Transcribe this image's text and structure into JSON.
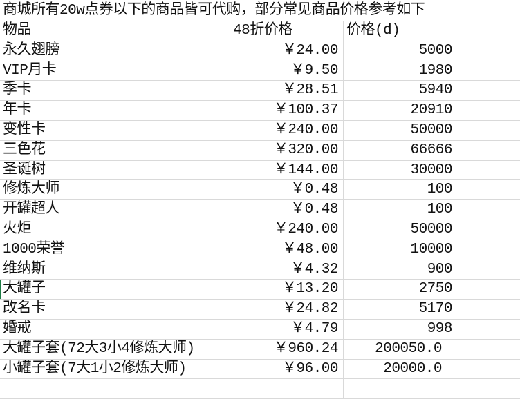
{
  "title": "商城所有20w点券以下的商品皆可代购，部分常见商品价格参考如下",
  "headers": [
    "物品",
    "48折价格",
    "价格(d)"
  ],
  "rows": [
    [
      "永久翅膀",
      "￥24.00",
      "5000"
    ],
    [
      "VIP月卡",
      "￥9.50",
      "1980"
    ],
    [
      "季卡",
      "￥28.51",
      "5940"
    ],
    [
      "年卡",
      "￥100.37",
      "20910"
    ],
    [
      "变性卡",
      "￥240.00",
      "50000"
    ],
    [
      "三色花",
      "￥320.00",
      "66666"
    ],
    [
      "圣诞树",
      "￥144.00",
      "30000"
    ],
    [
      "修炼大师",
      "￥0.48",
      "100"
    ],
    [
      "开罐超人",
      "￥0.48",
      "100"
    ],
    [
      "火炬",
      "￥240.00",
      "50000"
    ],
    [
      "1000荣誉",
      "￥48.00",
      "10000"
    ],
    [
      "维纳斯",
      "￥4.32",
      "900"
    ],
    [
      "大罐子",
      "￥13.20",
      "2750"
    ],
    [
      "改名卡",
      "￥24.82",
      "5170"
    ],
    [
      "婚戒",
      "￥4.79",
      "998"
    ],
    [
      "大罐子套(72大3小4修炼大师)",
      "￥960.24",
      "200050.0"
    ],
    [
      "小罐子套(7大1小2修炼大师)",
      "￥96.00",
      "20000.0"
    ]
  ],
  "selected_row_index": 12,
  "colors": {
    "grid": "#d9d9d9",
    "selection": "#1e7b45"
  }
}
